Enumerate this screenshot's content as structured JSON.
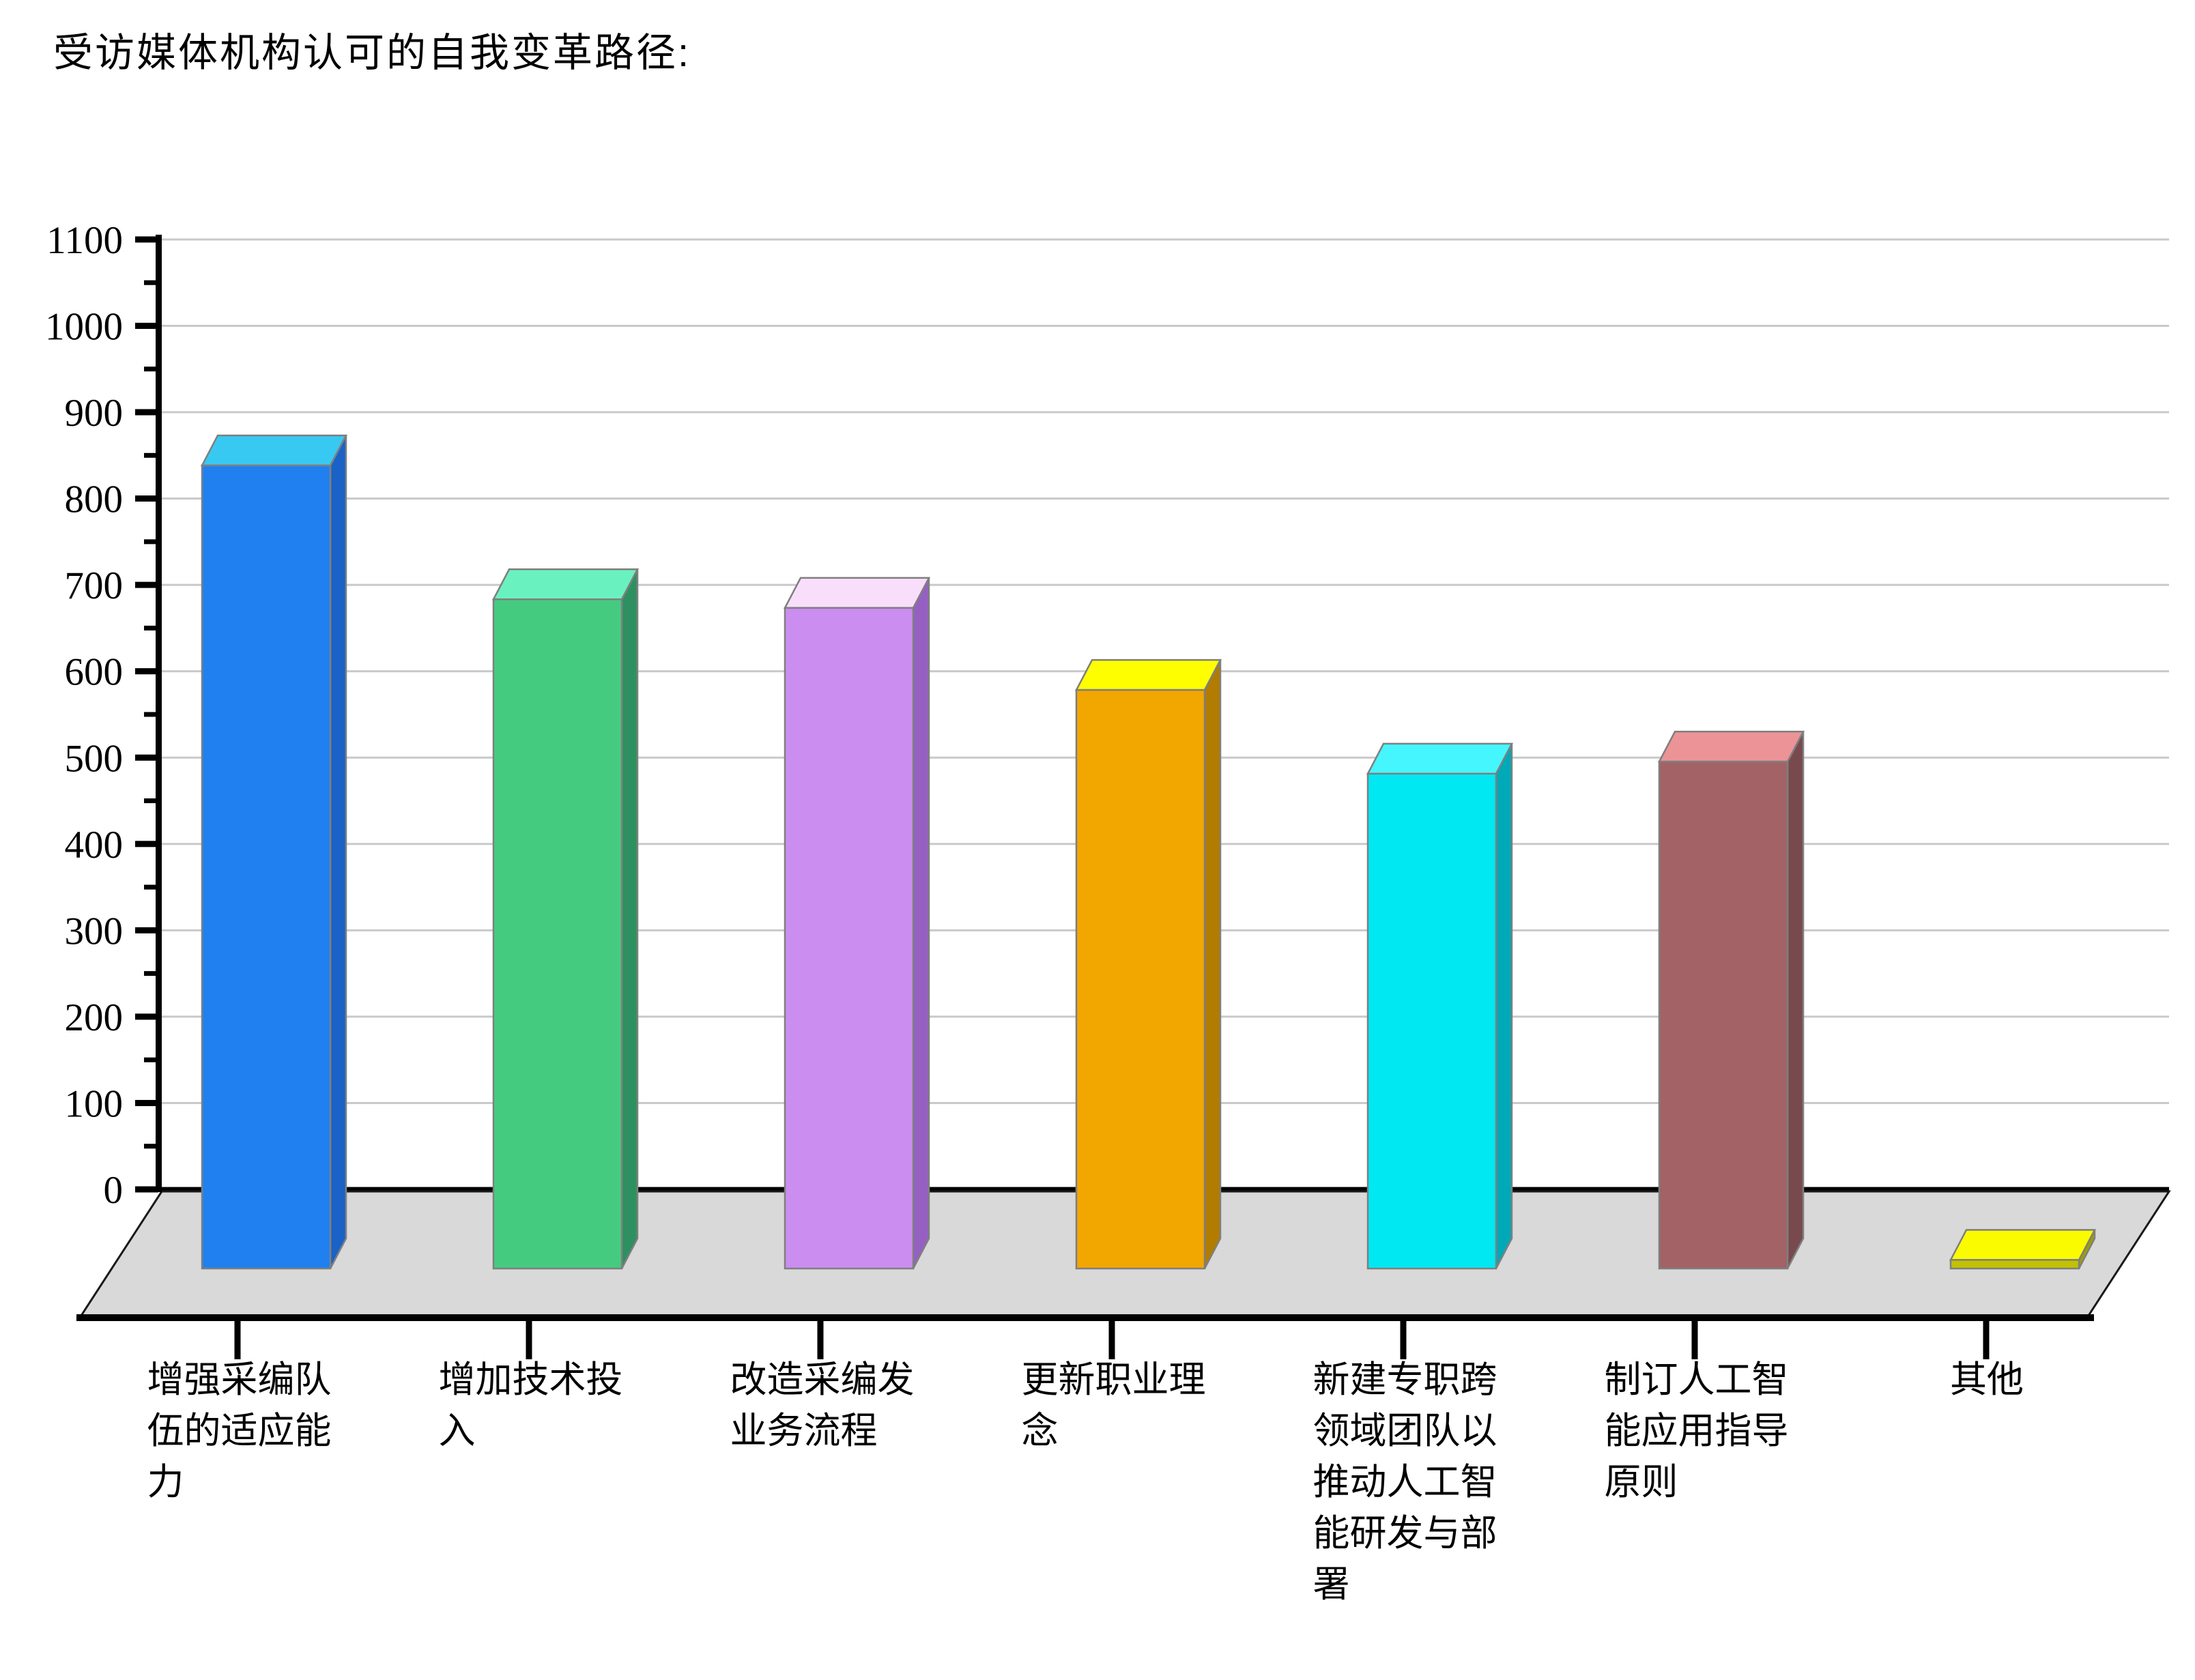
{
  "title": "受访媒体机构认可的自我变革路径:",
  "chart_data": {
    "type": "bar",
    "subtype": "3d-column",
    "title": "受访媒体机构认可的自我变革路径:",
    "categories": [
      "增强采编队伍的适应能力",
      "增加技术投入",
      "改造采编发业务流程",
      "更新职业理念",
      "新建专职跨领域团队以推动人工智能研发与部署",
      "制订人工智能应用指导原则",
      "其他"
    ],
    "values": [
      930,
      775,
      765,
      670,
      573,
      587,
      10
    ],
    "xlabel": "",
    "ylabel": "",
    "ylim": [
      0,
      1100
    ],
    "ytick_major_step": 100,
    "ytick_minor_step": 50,
    "yticks": [
      0,
      100,
      200,
      300,
      400,
      500,
      600,
      700,
      800,
      900,
      1000,
      1100
    ],
    "grid": true,
    "legend": "none",
    "gridline_color": "#C9C9C9",
    "floor_color": "#D9D9D9",
    "axis_color": "#000000",
    "bar_outline_color": "#7F7F7F",
    "bar_colors": [
      {
        "front": "#2080F0",
        "top": "#38C9F2",
        "side": "#1A62C6"
      },
      {
        "front": "#45CB80",
        "top": "#69F2C0",
        "side": "#2E9060"
      },
      {
        "front": "#CB8DF0",
        "top": "#F9DEFB",
        "side": "#9560C2"
      },
      {
        "front": "#F2A600",
        "top": "#FEFE00",
        "side": "#B17C00"
      },
      {
        "front": "#00E8F2",
        "top": "#45F6FF",
        "side": "#00A9B8"
      },
      {
        "front": "#A26266",
        "top": "#EC9397",
        "side": "#784A4E"
      },
      {
        "front": "#C2C200",
        "top": "#FBFB00",
        "side": "#9E9E00"
      }
    ]
  }
}
